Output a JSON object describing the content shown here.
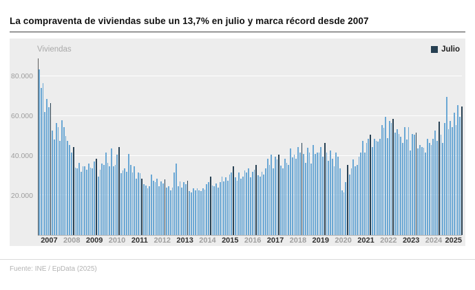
{
  "header": {
    "title": "La compraventa de viviendas sube un 13,7% en julio y marca récord desde 2007"
  },
  "chart": {
    "axis_label": "Viviendas",
    "legend_label": "Julio"
  },
  "footer": {
    "source": "Fuente: INE / EpData (2025)"
  },
  "chart_data": {
    "type": "bar",
    "title": "La compraventa de viviendas sube un 13,7% en julio y marca récord desde 2007",
    "xlabel": "",
    "ylabel": "Viviendas",
    "ylim": [
      0,
      89000
    ],
    "grid": true,
    "legend_position": "top-right",
    "yticks": [
      20000,
      40000,
      60000,
      80000
    ],
    "ytick_labels": [
      "20.000",
      "40.000",
      "60.000",
      "80.000"
    ],
    "highlight": {
      "month_index": 6,
      "label": "Julio"
    },
    "colors": {
      "bar": "#6aa7d4",
      "july": "#274052",
      "plot_bg": "#ededed"
    },
    "years": [
      "2007",
      "2008",
      "2009",
      "2010",
      "2011",
      "2012",
      "2013",
      "2014",
      "2015",
      "2016",
      "2017",
      "2018",
      "2019",
      "2020",
      "2021",
      "2022",
      "2023",
      "2024",
      "2025"
    ],
    "values_by_year": {
      "2007": [
        83500,
        74000,
        76500,
        62000,
        68500,
        64500,
        66500,
        52500,
        48000,
        56500,
        54500,
        47500
      ],
      "2008": [
        58000,
        54500,
        50000,
        47500,
        45500,
        41500,
        44500,
        34000,
        33500,
        36500,
        32000,
        34500
      ],
      "2009": [
        34500,
        33000,
        36000,
        34000,
        33500,
        37000,
        38500,
        29500,
        33000,
        36000,
        35500,
        41500
      ],
      "2010": [
        36500,
        34500,
        43500,
        34500,
        35500,
        40500,
        44500,
        31000,
        32500,
        33500,
        32000,
        41000
      ],
      "2011": [
        35500,
        31500,
        34500,
        28500,
        31500,
        31000,
        28500,
        25500,
        25000,
        23500,
        24500,
        30500
      ],
      "2012": [
        27500,
        26500,
        28500,
        24500,
        27000,
        26000,
        28000,
        24000,
        24500,
        22500,
        24000,
        31500
      ],
      "2013": [
        36000,
        24500,
        27000,
        24000,
        26500,
        25500,
        27500,
        22000,
        21500,
        23500,
        22500,
        23500
      ],
      "2014": [
        22500,
        22000,
        23500,
        23000,
        25500,
        26500,
        29500,
        25000,
        24500,
        26000,
        24000,
        26500
      ],
      "2015": [
        29500,
        27000,
        29000,
        27500,
        30500,
        31500,
        34500,
        29000,
        27500,
        31500,
        28500,
        29500
      ],
      "2016": [
        32500,
        31500,
        33500,
        29000,
        32000,
        33000,
        35500,
        30000,
        29500,
        32000,
        30500,
        33500
      ],
      "2017": [
        38500,
        35500,
        40500,
        33500,
        39500,
        38000,
        40500,
        35000,
        33500,
        38500,
        36500,
        35500
      ],
      "2018": [
        43500,
        39000,
        40500,
        38500,
        44500,
        41500,
        46500,
        41000,
        36500,
        44000,
        41500,
        36000
      ],
      "2019": [
        45500,
        41000,
        41500,
        41500,
        44500,
        39500,
        46500,
        41500,
        37500,
        42500,
        38500,
        34500
      ],
      "2020": [
        41500,
        39500,
        33500,
        22500,
        21500,
        26500,
        35500,
        30500,
        33500,
        38000,
        34500,
        35500
      ],
      "2021": [
        39500,
        41500,
        47500,
        41500,
        46500,
        48500,
        50500,
        44500,
        48500,
        47500,
        47000,
        48500
      ],
      "2022": [
        55500,
        54000,
        59500,
        49000,
        57500,
        56500,
        58500,
        51500,
        53500,
        51000,
        49500,
        46500
      ],
      "2023": [
        54500,
        48000,
        54500,
        42500,
        51000,
        50500,
        51500,
        43500,
        45500,
        44500,
        44000,
        41500
      ],
      "2024": [
        48500,
        46500,
        45500,
        48500,
        52500,
        47500,
        57000,
        50500,
        46500,
        56500,
        69500,
        53500
      ],
      "2025": [
        57500,
        54500,
        61500,
        55500,
        65500,
        59500,
        64800
      ]
    }
  }
}
